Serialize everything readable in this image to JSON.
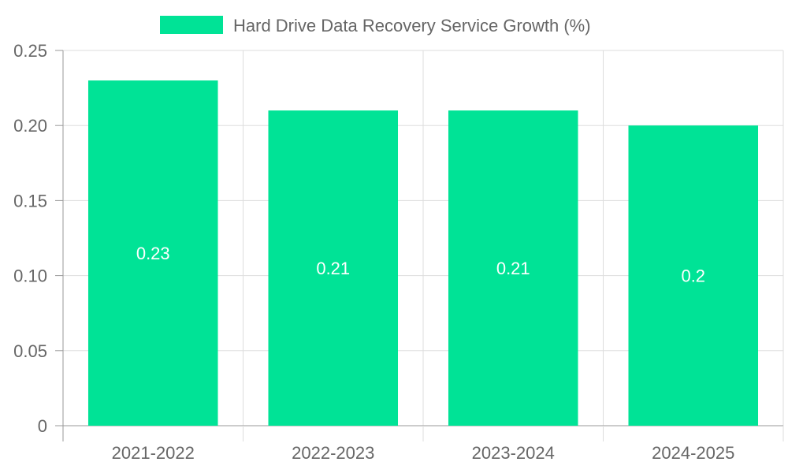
{
  "chart_data": {
    "type": "bar",
    "categories": [
      "2021-2022",
      "2022-2023",
      "2023-2024",
      "2024-2025"
    ],
    "series": [
      {
        "name": "Hard Drive Data Recovery Service Growth (%)",
        "values": [
          0.23,
          0.21,
          0.21,
          0.2
        ],
        "color": "#00e396"
      }
    ],
    "data_labels": [
      "0.23",
      "0.21",
      "0.21",
      "0.2"
    ],
    "y_ticks": [
      0,
      0.05,
      0.1,
      0.15,
      0.2,
      0.25
    ],
    "y_tick_labels": [
      "0",
      "0.05",
      "0.10",
      "0.15",
      "0.20",
      "0.25"
    ],
    "ylim": [
      0,
      0.25
    ],
    "grid": true,
    "legend_position": "top-center",
    "title": "",
    "xlabel": "",
    "ylabel": ""
  },
  "colors": {
    "bar": "#00e396",
    "grid": "#dddddd",
    "axis": "#999999",
    "text": "#666666",
    "data_label": "#ffffff"
  }
}
